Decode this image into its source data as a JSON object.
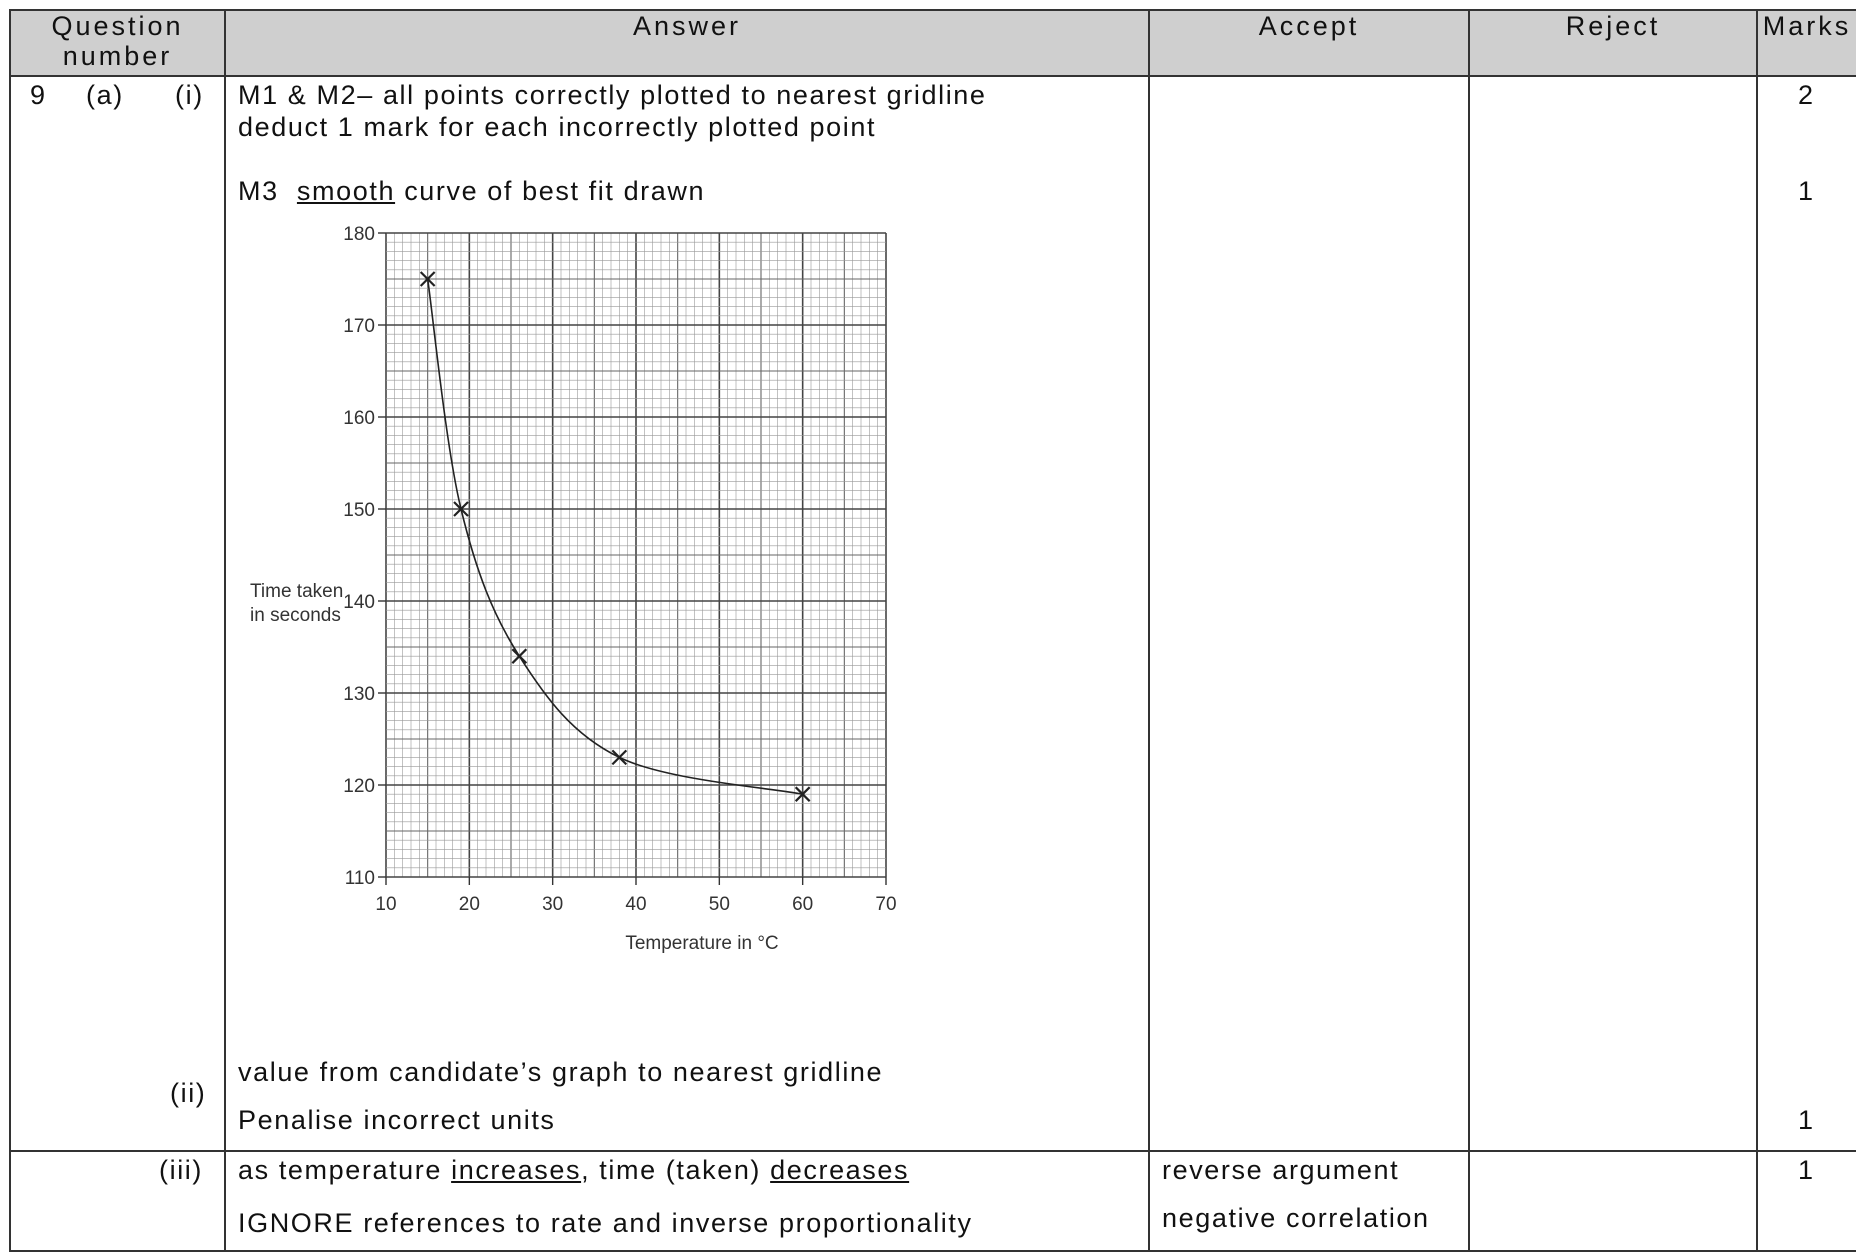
{
  "table": {
    "headers": {
      "question_line1": "Question",
      "question_line2": "number",
      "answer": "Answer",
      "accept": "Accept",
      "reject": "Reject",
      "marks": "Marks"
    },
    "row1": {
      "q_number": "9",
      "q_part": "(a)",
      "q_sub_i": "(i)",
      "q_sub_ii": "(ii)",
      "answer_line1": "M1 & M2– all points correctly plotted to nearest gridline",
      "answer_line2": "deduct 1 mark for each incorrectly plotted point",
      "m3_prefix": "M3",
      "m3_underlined": "smooth",
      "m3_rest": "curve of best fit drawn",
      "ii_line1": "value from candidate’s graph to nearest gridline",
      "ii_line2": "Penalise incorrect units",
      "marks_m1m2": "2",
      "marks_m3": "1",
      "marks_ii": "1"
    },
    "row2": {
      "q_sub": "(iii)",
      "answer_p1": "as temperature",
      "answer_u1": "increases",
      "answer_p2": ", time (taken)",
      "answer_u2": "decreases",
      "answer_line2": "IGNORE references to rate and inverse proportionality",
      "accept_line1": "reverse argument",
      "accept_line2": "negative correlation",
      "marks": "1"
    }
  },
  "chart_data": {
    "type": "scatter",
    "xlabel": "Temperature in °C",
    "ylabel_line1": "Time taken",
    "ylabel_line2": "in seconds",
    "xlim": [
      10,
      70
    ],
    "ylim": [
      110,
      180
    ],
    "x_ticks": [
      "10",
      "20",
      "30",
      "40",
      "50",
      "60",
      "70"
    ],
    "y_ticks": [
      "110",
      "120",
      "130",
      "140",
      "150",
      "160",
      "170",
      "180"
    ],
    "points": [
      {
        "x": 15,
        "y": 175
      },
      {
        "x": 19,
        "y": 150
      },
      {
        "x": 26,
        "y": 134
      },
      {
        "x": 38,
        "y": 123
      },
      {
        "x": 60,
        "y": 119
      }
    ],
    "curve": "smooth curve of best fit",
    "grid": true,
    "colors": {
      "grid": "#555555",
      "curve": "#222222"
    }
  }
}
